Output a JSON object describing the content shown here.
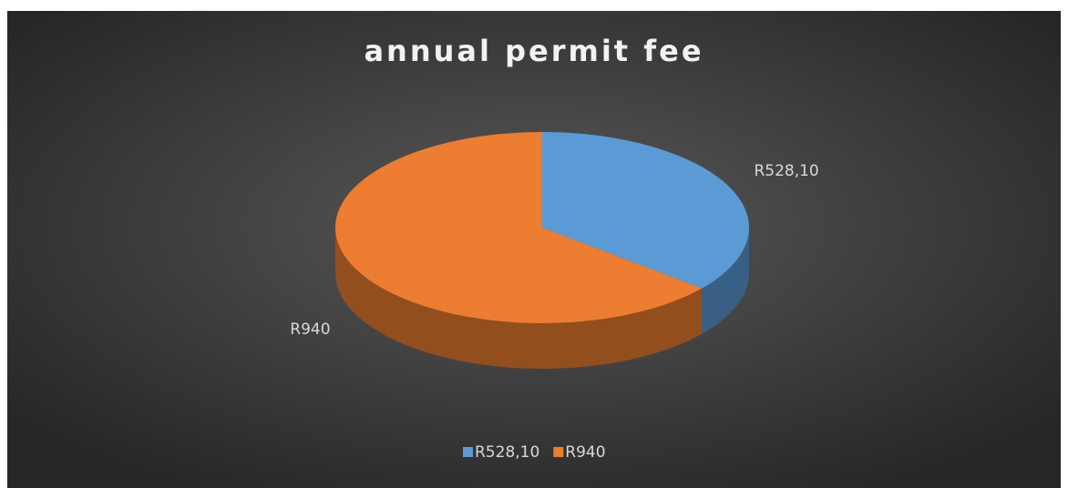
{
  "chart_data": {
    "type": "pie",
    "title": "annual permit fee",
    "categories": [
      "R528,10",
      "R940"
    ],
    "values": [
      528.1,
      940
    ],
    "value_labels": [
      "R528,10",
      "R940"
    ],
    "colors": [
      "#5b9bd5",
      "#ed7d31"
    ],
    "legend": "bottom"
  }
}
